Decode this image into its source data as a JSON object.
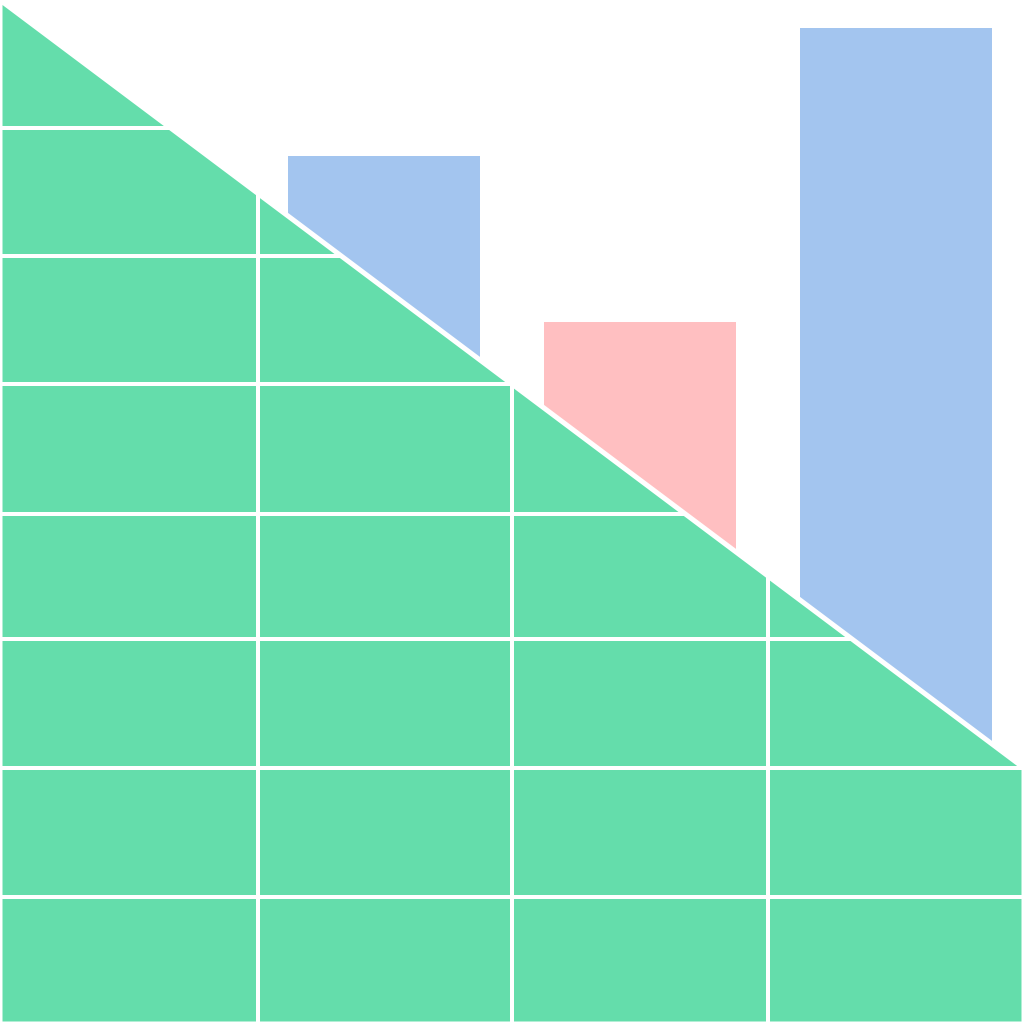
{
  "colors": {
    "background": "#FFFFFF",
    "grid_fill": "#64DDAB",
    "grid_lines": "#FFFFFF",
    "bar_blue": "#A3C5EF",
    "bar_pink": "#FFBFC1"
  },
  "bars": [
    {
      "color_key": "bar_blue"
    },
    {
      "color_key": "bar_pink"
    },
    {
      "color_key": "bar_blue"
    }
  ]
}
